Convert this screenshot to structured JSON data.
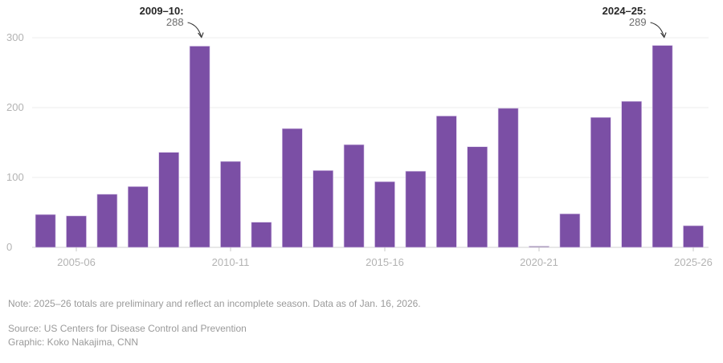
{
  "chart_data": {
    "type": "bar",
    "title": "",
    "xlabel": "",
    "ylabel": "",
    "ylim": [
      0,
      300
    ],
    "yticks": [
      0,
      100,
      200,
      300
    ],
    "grid": true,
    "bar_color": "#7b4fa5",
    "categories": [
      "2004-05",
      "2005-06",
      "2006-07",
      "2007-08",
      "2008-09",
      "2009-10",
      "2010-11",
      "2011-12",
      "2012-13",
      "2013-14",
      "2014-15",
      "2015-16",
      "2016-17",
      "2017-18",
      "2018-19",
      "2019-20",
      "2020-21",
      "2021-22",
      "2022-23",
      "2023-24",
      "2024-25",
      "2025-26"
    ],
    "values": [
      47,
      45,
      76,
      87,
      136,
      288,
      123,
      36,
      170,
      110,
      147,
      94,
      109,
      188,
      144,
      199,
      1,
      48,
      186,
      209,
      289,
      31
    ],
    "xtick_labels": [
      {
        "category": "2005-06",
        "label": "2005-06"
      },
      {
        "category": "2010-11",
        "label": "2010-11"
      },
      {
        "category": "2015-16",
        "label": "2015-16"
      },
      {
        "category": "2020-21",
        "label": "2020-21"
      },
      {
        "category": "2025-26",
        "label": "2025-26"
      }
    ],
    "annotations": [
      {
        "category": "2009-10",
        "title": "2009–10:",
        "value": "288"
      },
      {
        "category": "2024-25",
        "title": "2024–25:",
        "value": "289"
      }
    ]
  },
  "footer": {
    "note": "Note: 2025–26 totals are preliminary and reflect an incomplete season. Data as of Jan. 16, 2026.",
    "source": "Source: US Centers for Disease Control and Prevention",
    "credit": "Graphic: Koko Nakajima, CNN"
  }
}
